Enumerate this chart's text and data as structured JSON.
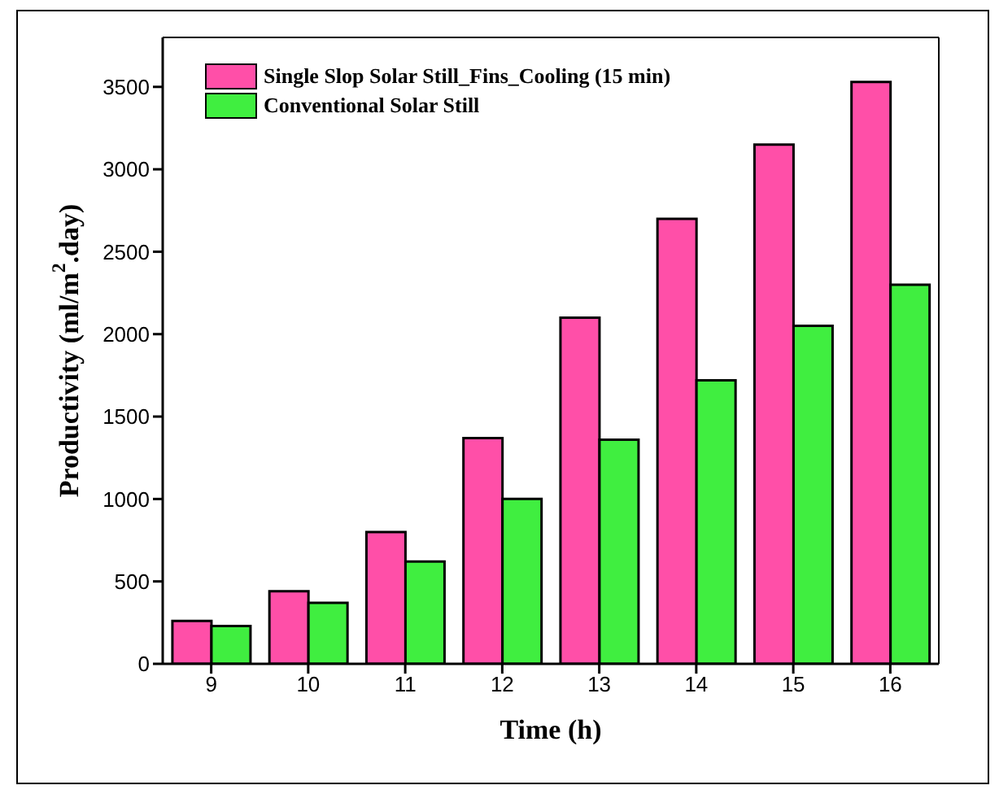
{
  "chart_data": {
    "type": "bar",
    "xlabel": "Time (h)",
    "ylabel": "Productivity (ml/m$^{2}$.day)",
    "categories": [
      "9",
      "10",
      "11",
      "12",
      "13",
      "14",
      "15",
      "16"
    ],
    "series": [
      {
        "name": "Single Slop Solar Still_Fins_Cooling (15 min)",
        "color": "#ff4fa8",
        "values": [
          260,
          440,
          800,
          1370,
          2100,
          2700,
          3150,
          3530
        ]
      },
      {
        "name": "Conventional Solar Still",
        "color": "#40ee40",
        "values": [
          230,
          370,
          620,
          1000,
          1360,
          1720,
          2050,
          2300
        ]
      }
    ],
    "ylim": [
      0,
      3800
    ],
    "yticks": [
      0,
      500,
      1000,
      1500,
      2000,
      2500,
      3000,
      3500
    ],
    "grid": false,
    "legend": "top left"
  }
}
